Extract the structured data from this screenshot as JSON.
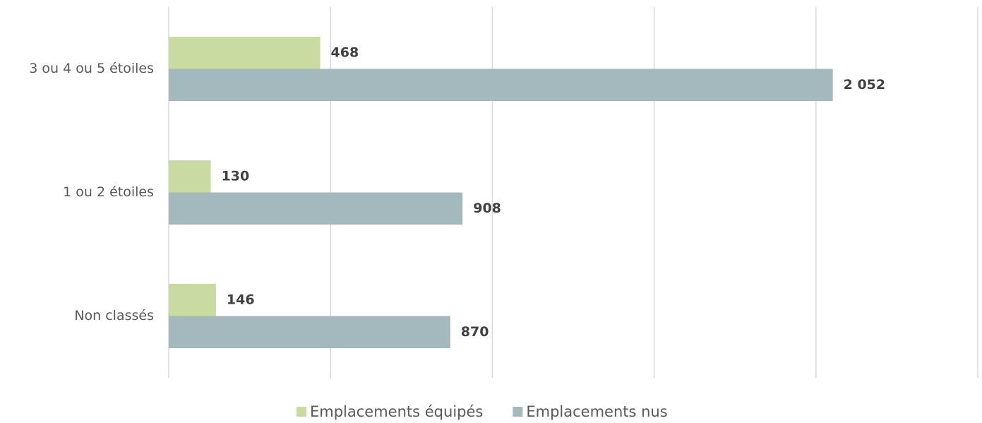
{
  "chart_data": {
    "type": "hbar",
    "categories": [
      "3 ou 4 ou 5 étoiles",
      "1 ou 2 étoiles",
      "Non classés"
    ],
    "series": [
      {
        "name": "Emplacements équipés",
        "color": "#c9dba0",
        "values": [
          468,
          130,
          146
        ]
      },
      {
        "name": "Emplacements nus",
        "color": "#a3b9bd",
        "values": [
          2052,
          908,
          870
        ],
        "value_labels": [
          "2 052",
          "908",
          "870"
        ]
      }
    ],
    "xlim": [
      0,
      2500
    ],
    "xticks": [
      0,
      500,
      1000,
      1500,
      2000,
      2500
    ],
    "grid": true,
    "legend": "bottom"
  }
}
